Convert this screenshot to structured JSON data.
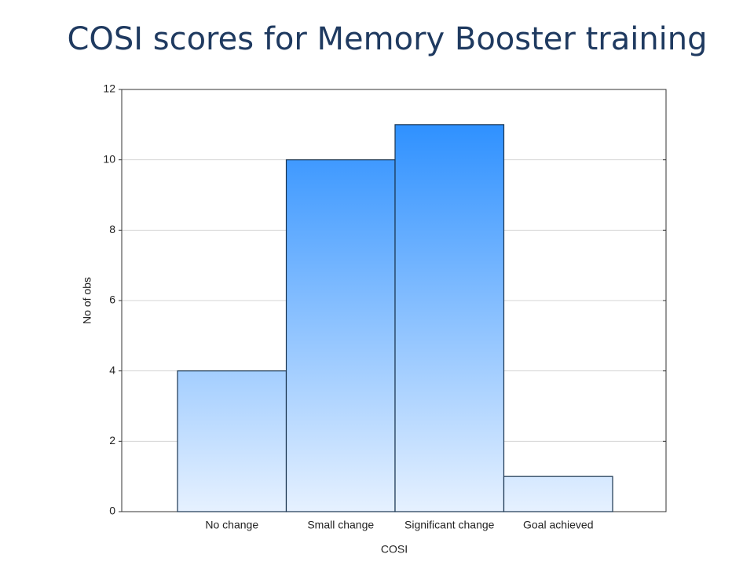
{
  "chart_data": {
    "type": "bar",
    "title": "COSI scores for Memory Booster training",
    "x_label": "COSI",
    "y_label": "No of obs",
    "categories": [
      "No change",
      "Small change",
      "Significant change",
      "Goal achieved"
    ],
    "values": [
      4,
      10,
      11,
      1
    ],
    "color": "#1e88ff",
    "ylim": [
      0,
      12
    ],
    "yticks": [
      0,
      2,
      4,
      6,
      8,
      10,
      12
    ],
    "grid": true
  }
}
